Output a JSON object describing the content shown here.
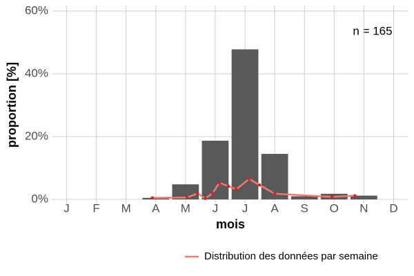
{
  "chart_data": {
    "type": "bar",
    "categories": [
      "J",
      "F",
      "M",
      "A",
      "M",
      "J",
      "J",
      "A",
      "S",
      "O",
      "N",
      "D"
    ],
    "values": [
      0,
      0,
      0,
      0.5,
      4.8,
      18.7,
      47.8,
      14.5,
      1.0,
      1.8,
      1.2,
      0
    ],
    "color": "#595959",
    "xlabel": "mois",
    "ylabel": "proportion [%]",
    "ylim": [
      0,
      60
    ],
    "yticks": [
      {
        "value": 0,
        "label": "0%"
      },
      {
        "value": 20,
        "label": "20%"
      },
      {
        "value": 40,
        "label": "40%"
      },
      {
        "value": 60,
        "label": "60%"
      }
    ],
    "grid": true,
    "annotation": "n = 165",
    "line_series": {
      "name": "Distribution des données par semaine",
      "color": "#f07a6e",
      "point_color": "#e41a1c",
      "x": [
        3.88,
        5.05,
        5.4,
        5.67,
        5.91,
        6.14,
        6.44,
        6.7,
        7.14,
        7.49,
        8.0,
        9.93,
        10.7
      ],
      "values": [
        0.5,
        0.6,
        1.9,
        0.3,
        2.0,
        5.3,
        4.2,
        3.2,
        6.5,
        4.6,
        1.8,
        0.8,
        1.2
      ]
    },
    "xlim": [
      0.5,
      12.5
    ],
    "legend": "bottom-right"
  }
}
